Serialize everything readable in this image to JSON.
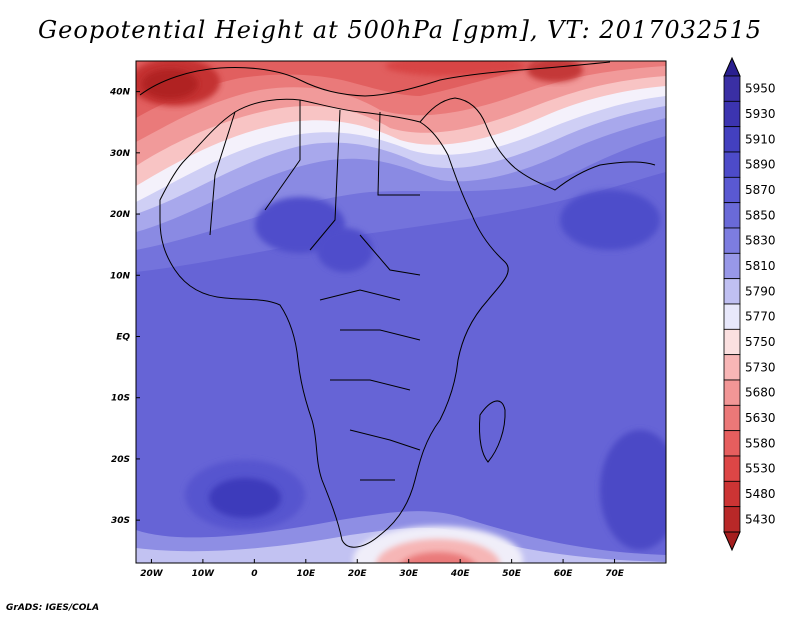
{
  "title": "Geopotential Height at 500hPa [gpm], VT: 2017032515",
  "credit": "GrADS: IGES/COLA",
  "map": {
    "lon_range": [
      -23,
      80
    ],
    "lat_range": [
      -37,
      45
    ],
    "x_ticks": [
      {
        "value": -20,
        "label": "20W"
      },
      {
        "value": -10,
        "label": "10W"
      },
      {
        "value": 0,
        "label": "0"
      },
      {
        "value": 10,
        "label": "10E"
      },
      {
        "value": 20,
        "label": "20E"
      },
      {
        "value": 30,
        "label": "30E"
      },
      {
        "value": 40,
        "label": "40E"
      },
      {
        "value": 50,
        "label": "50E"
      },
      {
        "value": 60,
        "label": "60E"
      },
      {
        "value": 70,
        "label": "70E"
      }
    ],
    "y_ticks": [
      {
        "value": 40,
        "label": "40N"
      },
      {
        "value": 30,
        "label": "30N"
      },
      {
        "value": 20,
        "label": "20N"
      },
      {
        "value": 10,
        "label": "10N"
      },
      {
        "value": 0,
        "label": "EQ"
      },
      {
        "value": -10,
        "label": "10S"
      },
      {
        "value": -20,
        "label": "20S"
      },
      {
        "value": -30,
        "label": "30S"
      }
    ]
  },
  "colorbar": {
    "levels": [
      {
        "label": "5950",
        "color": "#3a2fa4"
      },
      {
        "label": "5930",
        "color": "#3c34b0"
      },
      {
        "label": "5910",
        "color": "#4340bf"
      },
      {
        "label": "5890",
        "color": "#4d4bc9"
      },
      {
        "label": "5870",
        "color": "#5a59d2"
      },
      {
        "label": "5850",
        "color": "#6a6ad8"
      },
      {
        "label": "5830",
        "color": "#7d7de0"
      },
      {
        "label": "5810",
        "color": "#9898e8"
      },
      {
        "label": "5790",
        "color": "#c0c0f2"
      },
      {
        "label": "5770",
        "color": "#e8e8fb"
      },
      {
        "label": "5750",
        "color": "#fbe0e0"
      },
      {
        "label": "5730",
        "color": "#f8b6b6"
      },
      {
        "label": "5680",
        "color": "#f29696"
      },
      {
        "label": "5630",
        "color": "#ec7878"
      },
      {
        "label": "5580",
        "color": "#e65e5e"
      },
      {
        "label": "5530",
        "color": "#dd4646"
      },
      {
        "label": "5480",
        "color": "#cc3434"
      },
      {
        "label": "5430",
        "color": "#b82828"
      }
    ],
    "top_arrow_color": "#2a1f90",
    "bottom_arrow_color": "#a51e1e"
  }
}
